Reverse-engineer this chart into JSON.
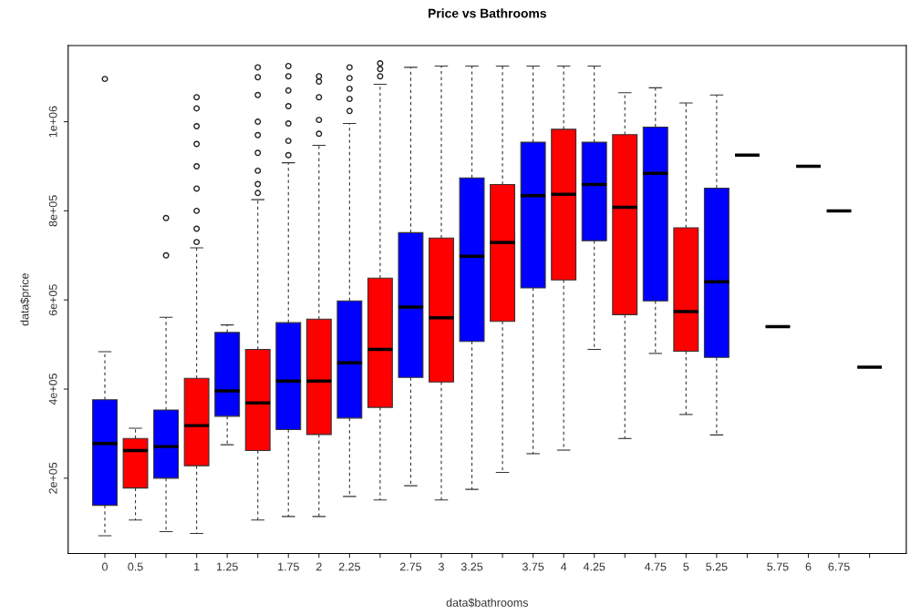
{
  "chart_data": {
    "type": "box",
    "title": "Price vs Bathrooms",
    "xlabel": "data$bathrooms",
    "ylabel": "data$price",
    "categories": [
      "0",
      "0.5",
      null,
      "1",
      "1.25",
      null,
      "1.75",
      "2",
      "2.25",
      null,
      "2.75",
      "3",
      "3.25",
      null,
      "3.75",
      "4",
      "4.25",
      null,
      "4.75",
      "5",
      "5.25",
      null,
      "5.75",
      "6",
      "6.75",
      null
    ],
    "colors": [
      "#0000ff",
      "#ff0000",
      "#0000ff",
      "#ff0000",
      "#0000ff",
      "#ff0000",
      "#0000ff",
      "#ff0000",
      "#0000ff",
      "#ff0000",
      "#0000ff",
      "#ff0000",
      "#0000ff",
      "#ff0000",
      "#0000ff",
      "#ff0000",
      "#0000ff",
      "#ff0000",
      "#0000ff",
      "#ff0000",
      "#0000ff",
      null,
      null,
      null,
      null,
      null
    ],
    "boxes": [
      {
        "low": 71000,
        "q1": 139000,
        "median": 278000,
        "q3": 376000,
        "high": 484000,
        "outliers": [
          1096000
        ]
      },
      {
        "low": 106000,
        "q1": 178000,
        "median": 262000,
        "q3": 289000,
        "high": 312000
      },
      {
        "low": 80000,
        "q1": 200000,
        "median": 271000,
        "q3": 353000,
        "high": 561000,
        "outliers": [
          700000,
          784000
        ]
      },
      {
        "low": 76000,
        "q1": 228000,
        "median": 318000,
        "q3": 424000,
        "high": 717000,
        "outliers": [
          730000,
          760000,
          800000,
          850000,
          900000,
          950000,
          990000,
          1030000,
          1055000
        ]
      },
      {
        "low": 275000,
        "q1": 339000,
        "median": 396000,
        "q3": 527000,
        "high": 544000
      },
      {
        "low": 106000,
        "q1": 262000,
        "median": 369000,
        "q3": 489000,
        "high": 825000,
        "outliers": [
          840000,
          860000,
          890000,
          930000,
          970000,
          1000000,
          1060000,
          1100000,
          1122000
        ]
      },
      {
        "low": 114000,
        "q1": 309000,
        "median": 418000,
        "q3": 549000,
        "high": 908000,
        "outliers": [
          925000,
          957000,
          996000,
          1035000,
          1070000,
          1102000,
          1125000
        ]
      },
      {
        "low": 114000,
        "q1": 298000,
        "median": 418000,
        "q3": 557000,
        "high": 947000,
        "outliers": [
          973000,
          1004000,
          1055000,
          1090000,
          1102000
        ]
      },
      {
        "low": 159000,
        "q1": 335000,
        "median": 459000,
        "q3": 598000,
        "high": 996000,
        "outliers": [
          1024000,
          1051000,
          1074000,
          1098000,
          1122000
        ]
      },
      {
        "low": 151000,
        "q1": 359000,
        "median": 489000,
        "q3": 649000,
        "high": 1084000,
        "outliers": [
          1102000,
          1118000,
          1131000
        ]
      },
      {
        "low": 183000,
        "q1": 426000,
        "median": 584000,
        "q3": 751000,
        "high": 1122000
      },
      {
        "low": 151000,
        "q1": 416000,
        "median": 560000,
        "q3": 739000,
        "high": 1125000
      },
      {
        "low": 175000,
        "q1": 507000,
        "median": 698000,
        "q3": 874000,
        "high": 1125000
      },
      {
        "low": 213000,
        "q1": 552000,
        "median": 729000,
        "q3": 859000,
        "high": 1125000
      },
      {
        "low": 255000,
        "q1": 627000,
        "median": 834000,
        "q3": 954000,
        "high": 1125000
      },
      {
        "low": 263000,
        "q1": 645000,
        "median": 837000,
        "q3": 983000,
        "high": 1125000
      },
      {
        "low": 489000,
        "q1": 733000,
        "median": 859000,
        "q3": 954000,
        "high": 1125000
      },
      {
        "low": 289000,
        "q1": 567000,
        "median": 808000,
        "q3": 971000,
        "high": 1065000
      },
      {
        "low": 480000,
        "q1": 598000,
        "median": 884000,
        "q3": 988000,
        "high": 1076000
      },
      {
        "low": 343000,
        "q1": 485000,
        "median": 574000,
        "q3": 762000,
        "high": 1042000
      },
      {
        "low": 297000,
        "q1": 471000,
        "median": 641000,
        "q3": 851000,
        "high": 1060000
      },
      {
        "low": 925000,
        "q1": 925000,
        "median": 925000,
        "q3": 925000,
        "high": 925000
      },
      {
        "low": 540000,
        "q1": 540000,
        "median": 540000,
        "q3": 540000,
        "high": 540000
      },
      {
        "low": 900000,
        "q1": 900000,
        "median": 900000,
        "q3": 900000,
        "high": 900000
      },
      {
        "low": 800000,
        "q1": 800000,
        "median": 800000,
        "q3": 800000,
        "high": 800000
      },
      {
        "low": 449000,
        "q1": 449000,
        "median": 449000,
        "q3": 449000,
        "high": 449000
      }
    ],
    "ylim": [
      31000,
      1171000
    ],
    "yticks": [
      {
        "value": 200000,
        "label": "2e+05"
      },
      {
        "value": 400000,
        "label": "4e+05"
      },
      {
        "value": 600000,
        "label": "6e+05"
      },
      {
        "value": 800000,
        "label": "8e+05"
      },
      {
        "value": 1000000,
        "label": "1e+06"
      }
    ],
    "grid": false,
    "legend": false
  }
}
